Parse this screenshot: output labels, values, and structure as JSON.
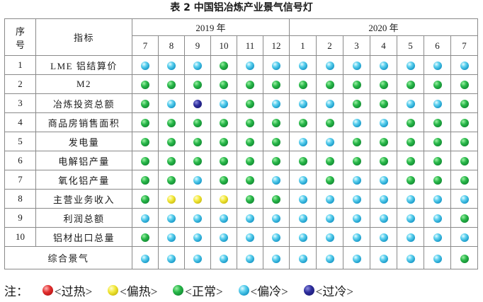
{
  "title": "表 2 中国铝冶炼产业景气信号灯",
  "header": {
    "seq_label": "序号",
    "seq_line1": "序",
    "seq_line2": "号",
    "indicator_label": "指标",
    "year_2019": "2019 年",
    "year_2020": "2020 年",
    "months_2019": [
      "7",
      "8",
      "9",
      "10",
      "11",
      "12"
    ],
    "months_2020": [
      "1",
      "2",
      "3",
      "4",
      "5",
      "6",
      "7"
    ]
  },
  "rows": [
    {
      "id": "1",
      "name": "LME 铝结算价",
      "signals": [
        "blue",
        "blue",
        "blue",
        "green",
        "blue",
        "blue",
        "blue",
        "blue",
        "blue",
        "blue",
        "blue",
        "blue",
        "blue"
      ]
    },
    {
      "id": "2",
      "name": "M2",
      "signals": [
        "green",
        "green",
        "green",
        "green",
        "green",
        "green",
        "green",
        "green",
        "green",
        "green",
        "green",
        "green",
        "green"
      ]
    },
    {
      "id": "3",
      "name": "冶炼投资总额",
      "signals": [
        "green",
        "blue",
        "navy",
        "blue",
        "green",
        "blue",
        "blue",
        "blue",
        "green",
        "green",
        "blue",
        "blue",
        "green"
      ]
    },
    {
      "id": "4",
      "name": "商品房销售面积",
      "signals": [
        "green",
        "green",
        "green",
        "green",
        "green",
        "green",
        "green",
        "green",
        "blue",
        "blue",
        "green",
        "green",
        "green"
      ]
    },
    {
      "id": "5",
      "name": "发电量",
      "signals": [
        "green",
        "green",
        "green",
        "green",
        "green",
        "green",
        "blue",
        "blue",
        "green",
        "green",
        "green",
        "green",
        "green"
      ]
    },
    {
      "id": "6",
      "name": "电解铝产量",
      "signals": [
        "green",
        "green",
        "green",
        "green",
        "green",
        "green",
        "green",
        "green",
        "green",
        "green",
        "green",
        "green",
        "green"
      ]
    },
    {
      "id": "7",
      "name": "氧化铝产量",
      "signals": [
        "green",
        "green",
        "blue",
        "green",
        "green",
        "blue",
        "blue",
        "green",
        "blue",
        "blue",
        "green",
        "green",
        "green"
      ]
    },
    {
      "id": "8",
      "name": "主营业务收入",
      "signals": [
        "green",
        "yellow",
        "yellow",
        "yellow",
        "green",
        "green",
        "blue",
        "blue",
        "blue",
        "blue",
        "blue",
        "blue",
        "blue"
      ]
    },
    {
      "id": "9",
      "name": "利润总额",
      "signals": [
        "blue",
        "blue",
        "blue",
        "blue",
        "blue",
        "blue",
        "blue",
        "blue",
        "blue",
        "blue",
        "blue",
        "blue",
        "green"
      ]
    },
    {
      "id": "10",
      "name": "铝材出口总量",
      "signals": [
        "green",
        "blue",
        "blue",
        "blue",
        "blue",
        "blue",
        "blue",
        "blue",
        "blue",
        "blue",
        "blue",
        "blue",
        "blue"
      ]
    }
  ],
  "composite": {
    "name": "综合景气",
    "signals": [
      "blue",
      "blue",
      "blue",
      "blue",
      "blue",
      "blue",
      "blue",
      "blue",
      "blue",
      "blue",
      "blue",
      "blue",
      "green"
    ]
  },
  "legend": {
    "prefix": "注：",
    "items": [
      {
        "color": "red",
        "label": "<过热>"
      },
      {
        "color": "yellow",
        "label": "<偏热>"
      },
      {
        "color": "green",
        "label": "<正常>"
      },
      {
        "color": "blue",
        "label": "<偏冷>"
      },
      {
        "color": "navy",
        "label": "<过冷>"
      }
    ]
  },
  "colors": {
    "red": "#d62020",
    "yellow": "#e6dc1e",
    "green": "#1aa03c",
    "blue": "#27b0dc",
    "navy": "#23238a"
  }
}
